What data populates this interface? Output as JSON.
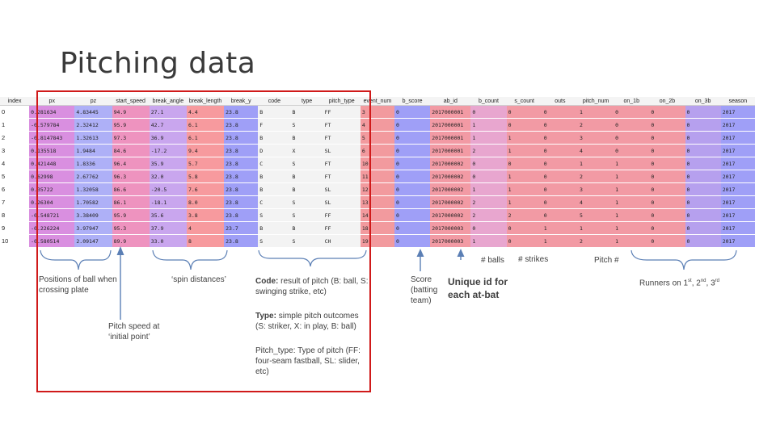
{
  "slide": {
    "title": "Pitching data"
  },
  "table": {
    "columns": [
      "index",
      "px",
      "pz",
      "start_speed",
      "break_angle",
      "break_length",
      "break_y",
      "code",
      "type",
      "pitch_type",
      "event_num",
      "b_score",
      "ab_id",
      "b_count",
      "s_count",
      "outs",
      "pitch_num",
      "on_1b",
      "on_2b",
      "on_3b",
      "season"
    ],
    "rows": [
      [
        "0",
        "0.281634",
        "4.83445",
        "94.9",
        "27.1",
        "4.4",
        "23.8",
        "B",
        "B",
        "FF",
        "3",
        "0",
        "2017000001",
        "0",
        "0",
        "0",
        "1",
        "0",
        "0",
        "0",
        "2017"
      ],
      [
        "1",
        "-0.579784",
        "2.32412",
        "95.9",
        "42.7",
        "6.1",
        "23.8",
        "F",
        "S",
        "FT",
        "4",
        "0",
        "2017000001",
        "1",
        "0",
        "0",
        "2",
        "0",
        "0",
        "0",
        "2017"
      ],
      [
        "2",
        "-0.8147843",
        "1.32613",
        "97.3",
        "36.9",
        "6.1",
        "23.8",
        "B",
        "B",
        "FT",
        "5",
        "0",
        "2017000001",
        "1",
        "1",
        "0",
        "3",
        "0",
        "0",
        "0",
        "2017"
      ],
      [
        "3",
        "0.135518",
        "1.9484",
        "84.6",
        "-17.2",
        "9.4",
        "23.8",
        "D",
        "X",
        "SL",
        "6",
        "0",
        "2017000001",
        "2",
        "1",
        "0",
        "4",
        "0",
        "0",
        "0",
        "2017"
      ],
      [
        "4",
        "0.421448",
        "1.8336",
        "96.4",
        "35.9",
        "5.7",
        "23.8",
        "C",
        "S",
        "FT",
        "10",
        "0",
        "2017000002",
        "0",
        "0",
        "0",
        "1",
        "1",
        "0",
        "0",
        "2017"
      ],
      [
        "5",
        "0.62998",
        "2.67762",
        "96.3",
        "32.0",
        "5.8",
        "23.8",
        "B",
        "B",
        "FT",
        "11",
        "0",
        "2017000002",
        "0",
        "1",
        "0",
        "2",
        "1",
        "0",
        "0",
        "2017"
      ],
      [
        "6",
        "0.35722",
        "1.32058",
        "86.6",
        "-20.5",
        "7.6",
        "23.8",
        "B",
        "B",
        "SL",
        "12",
        "0",
        "2017000002",
        "1",
        "1",
        "0",
        "3",
        "1",
        "0",
        "0",
        "2017"
      ],
      [
        "7",
        "0.26304",
        "1.70582",
        "86.1",
        "-18.1",
        "8.0",
        "23.8",
        "C",
        "S",
        "SL",
        "13",
        "0",
        "2017000002",
        "2",
        "1",
        "0",
        "4",
        "1",
        "0",
        "0",
        "2017"
      ],
      [
        "8",
        "-0.548721",
        "3.38409",
        "95.9",
        "35.6",
        "3.8",
        "23.8",
        "S",
        "S",
        "FF",
        "14",
        "0",
        "2017000002",
        "2",
        "2",
        "0",
        "5",
        "1",
        "0",
        "0",
        "2017"
      ],
      [
        "9",
        "-0.226224",
        "3.97947",
        "95.3",
        "37.9",
        "4",
        "23.7",
        "B",
        "B",
        "FF",
        "18",
        "0",
        "2017000003",
        "0",
        "0",
        "1",
        "1",
        "1",
        "0",
        "0",
        "2017"
      ],
      [
        "10",
        "-0.580514",
        "2.09147",
        "89.9",
        "33.0",
        "8",
        "23.8",
        "S",
        "S",
        "CH",
        "19",
        "0",
        "2017000003",
        "1",
        "0",
        "1",
        "2",
        "1",
        "0",
        "0",
        "2017"
      ]
    ],
    "column_colors": [
      "#ffffff",
      "#d98fe0",
      "#aeb0f7",
      "#ee93bf",
      "#c9a6ee",
      "#f79a9e",
      "#9f9ff7",
      "#f3f3f3",
      "#f3f3f3",
      "#f3f3f3",
      "#f29a9e",
      "#9f9ff7",
      "#f29aa4",
      "#e8a6cf",
      "#f29aa4",
      "#f29aa4",
      "#f29aa4",
      "#f29aa4",
      "#f29aa4",
      "#b6a0ee",
      "#9f9ff7"
    ]
  },
  "annotations": {
    "positions": "Positions of ball when crossing plate",
    "spin": "‘spin distances’",
    "pitch_speed": "Pitch speed at ‘initial point’",
    "code_term": "Code:",
    "code_desc": "result of pitch (B: ball, S: swinging strike, etc)",
    "type_term": "Type:",
    "type_desc": "simple pitch outcomes (S: striker, X: in play, B: ball)",
    "pitch_type_term": "Pitch_type:",
    "pitch_type_desc": "Type of pitch (FF: four-seam fastball, SL: slider, etc)",
    "score": "Score (batting team)",
    "balls": "# balls",
    "strikes": "# strikes",
    "unique_id": "Unique id for each at-bat",
    "pitch_num": "Pitch #",
    "runners_pre": "Runners on 1",
    "runners_st": "st",
    "runners_mid1": ", 2",
    "runners_nd": "nd",
    "runners_mid2": ", 3",
    "runners_rd": "rd"
  },
  "colors": {
    "highlight_box": "#d01a1a",
    "annotation_line": "#5b7fb5"
  }
}
